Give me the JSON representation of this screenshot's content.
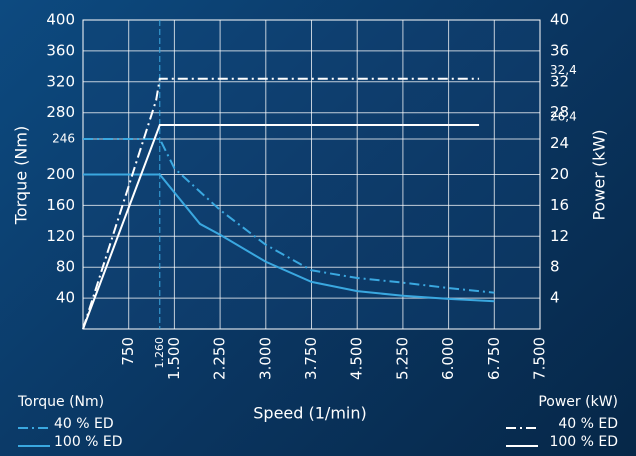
{
  "chart_data": {
    "type": "line",
    "x_label": "Speed (1/min)",
    "y_label": "Torque (Nm)",
    "y2_label": "Power (kW)",
    "legend_titles": [
      "Torque (Nm)",
      "Power (kW)"
    ],
    "xlim": [
      0,
      7500
    ],
    "xticks": [
      750,
      {
        "value": 1260,
        "label": "1.260"
      },
      {
        "value": 1500,
        "label": "1.500"
      },
      {
        "value": 2250,
        "label": "2.250"
      },
      {
        "value": 3000,
        "label": "3.000"
      },
      {
        "value": 3750,
        "label": "3.750"
      },
      {
        "value": 4500,
        "label": "4.500"
      },
      {
        "value": 5250,
        "label": "5.250"
      },
      {
        "value": 6000,
        "label": "6.000"
      },
      {
        "value": 6750,
        "label": "6.750"
      },
      {
        "value": 7500,
        "label": "7.500"
      }
    ],
    "ylim": [
      0,
      400
    ],
    "yticks": [
      40,
      80,
      120,
      160,
      200,
      246,
      280,
      320,
      360,
      400
    ],
    "y2lim": [
      0,
      40
    ],
    "y2ticks": [
      4,
      8,
      12,
      16,
      20,
      24,
      {
        "value": 26.4,
        "label": "26,4"
      },
      28,
      32,
      {
        "value": 32.4,
        "label": "32,4"
      },
      36,
      40
    ],
    "grid": true,
    "series": [
      {
        "name": "40 % ED",
        "group": 0,
        "color": "#3aa8e0",
        "style": "dash-dot",
        "axis": "y",
        "x": [
          0,
          1260,
          1500,
          2250,
          3000,
          3750,
          4500,
          5250,
          6000,
          6750
        ],
        "values": [
          246,
          246,
          208,
          154,
          109,
          76,
          66,
          60,
          53,
          47
        ]
      },
      {
        "name": "100 % ED",
        "group": 0,
        "color": "#3aa8e0",
        "style": "solid",
        "axis": "y",
        "x": [
          0,
          1260,
          1920,
          2250,
          3000,
          3750,
          4500,
          5250,
          6000,
          6750
        ],
        "values": [
          200,
          200,
          136,
          122,
          87,
          61,
          49,
          43,
          39,
          36
        ]
      },
      {
        "name": "40 % ED",
        "group": 1,
        "color": "#ffffff",
        "style": "dash-dot",
        "axis": "y2",
        "x": [
          0,
          1200,
          1260,
          6500
        ],
        "values": [
          0,
          29.6,
          32.4,
          32.4
        ]
      },
      {
        "name": "100 % ED",
        "group": 1,
        "color": "#ffffff",
        "style": "solid",
        "axis": "y2",
        "x": [
          0,
          1260,
          6500
        ],
        "values": [
          0,
          26.4,
          26.4
        ]
      }
    ]
  }
}
